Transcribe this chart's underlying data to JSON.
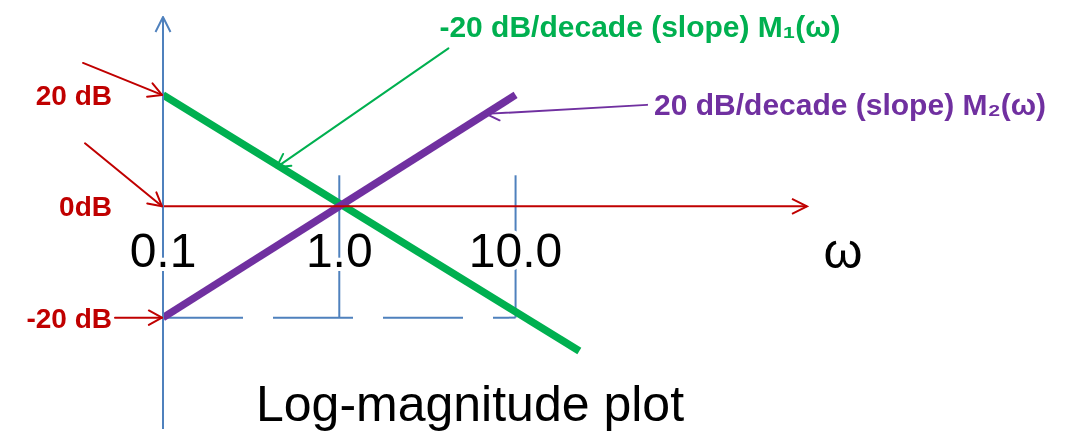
{
  "chart_data": {
    "type": "line",
    "title": "Log-magnitude plot",
    "xlabel": "ω",
    "log": "x",
    "xlim": [
      0.1,
      450
    ],
    "ylim": [
      -40,
      34
    ],
    "xticks": [
      0.1,
      {
        "value": 1,
        "label": "1.0"
      },
      {
        "value": 10,
        "label": "10.0"
      }
    ],
    "yticks": [
      {
        "value": -20,
        "label": "-20 dB"
      },
      {
        "value": 0,
        "label": "0dB"
      },
      {
        "value": 20,
        "label": "20 dB"
      }
    ],
    "series": [
      {
        "color": "#00b050",
        "x": [
          0.1,
          23
        ],
        "values": [
          20,
          -26
        ]
      },
      {
        "color": "#7030a0",
        "x": [
          0.1,
          10
        ],
        "values": [
          -20,
          20
        ]
      }
    ],
    "ref_lines": [
      {
        "axis": "x",
        "value": 1,
        "color": "#4f81bd"
      },
      {
        "axis": "x",
        "value": 10,
        "color": "#4f81bd"
      },
      {
        "axis": "y",
        "value": -20,
        "color": "#4f81bd",
        "line_style": "dashed"
      }
    ],
    "annotations": [
      {
        "text": "-20 dB/decade (slope) M₁(ω)",
        "x": 0.44,
        "y": 7
      },
      {
        "text": "20 dB/decade (slope) M₂(ω)",
        "x": 6.8,
        "y": 16.6
      }
    ],
    "marker": "none",
    "line_style": "solid"
  }
}
